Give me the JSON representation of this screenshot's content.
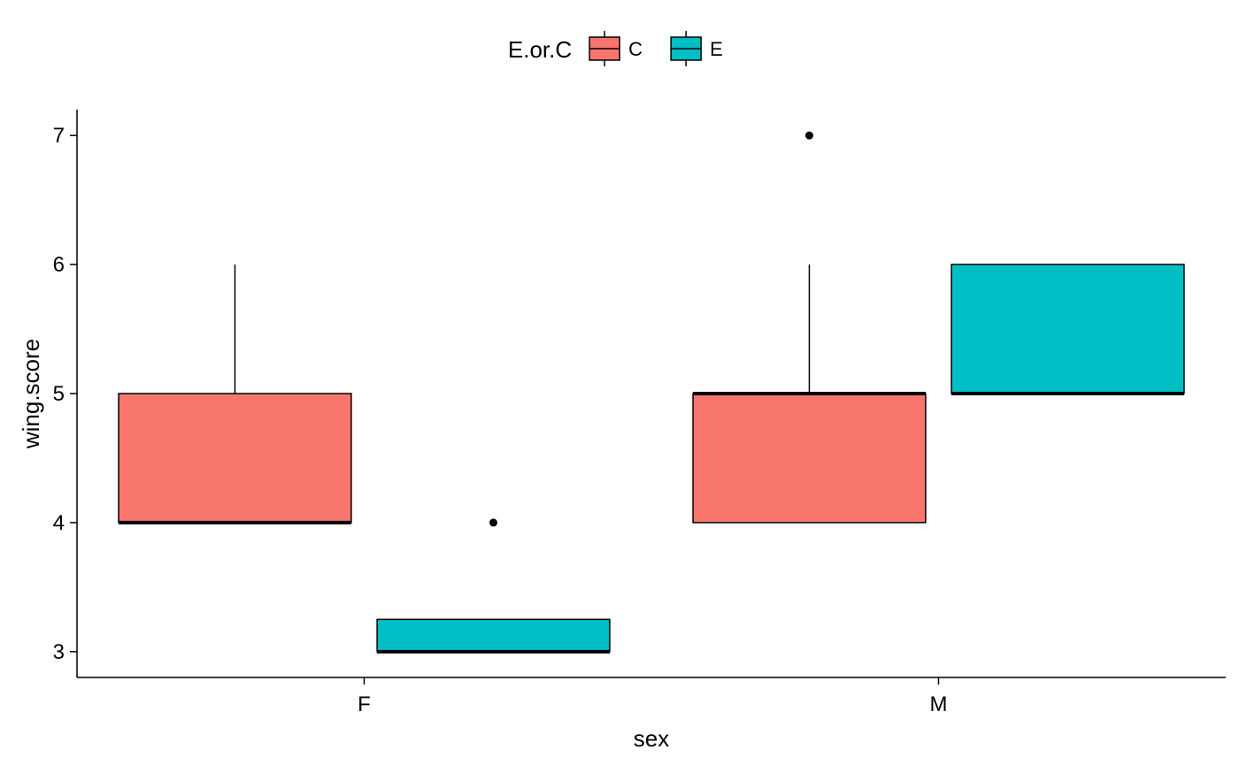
{
  "chart_data": {
    "type": "box",
    "xlabel": "sex",
    "ylabel": "wing.score",
    "ylim": [
      2.8,
      7.2
    ],
    "yticks": [
      3,
      4,
      5,
      6,
      7
    ],
    "categories": [
      "F",
      "M"
    ],
    "grid": false,
    "legend": {
      "title": "E.or.C",
      "position": "top",
      "entries": [
        {
          "name": "C",
          "color": "#F8766D"
        },
        {
          "name": "E",
          "color": "#00BFC4"
        }
      ]
    },
    "series": [
      {
        "name": "C",
        "color": "#F8766D",
        "boxes": [
          {
            "category": "F",
            "lower_whisker": 4,
            "q1": 4,
            "median": 4,
            "q3": 5,
            "upper_whisker": 6,
            "outliers": []
          },
          {
            "category": "M",
            "lower_whisker": 4,
            "q1": 4,
            "median": 5,
            "q3": 5,
            "upper_whisker": 6,
            "outliers": [
              7
            ]
          }
        ]
      },
      {
        "name": "E",
        "color": "#00BFC4",
        "boxes": [
          {
            "category": "F",
            "lower_whisker": 3,
            "q1": 3,
            "median": 3,
            "q3": 3.25,
            "upper_whisker": 3.25,
            "outliers": [
              4
            ]
          },
          {
            "category": "M",
            "lower_whisker": 5,
            "q1": 5,
            "median": 5,
            "q3": 6,
            "upper_whisker": 6,
            "outliers": []
          }
        ]
      }
    ]
  }
}
